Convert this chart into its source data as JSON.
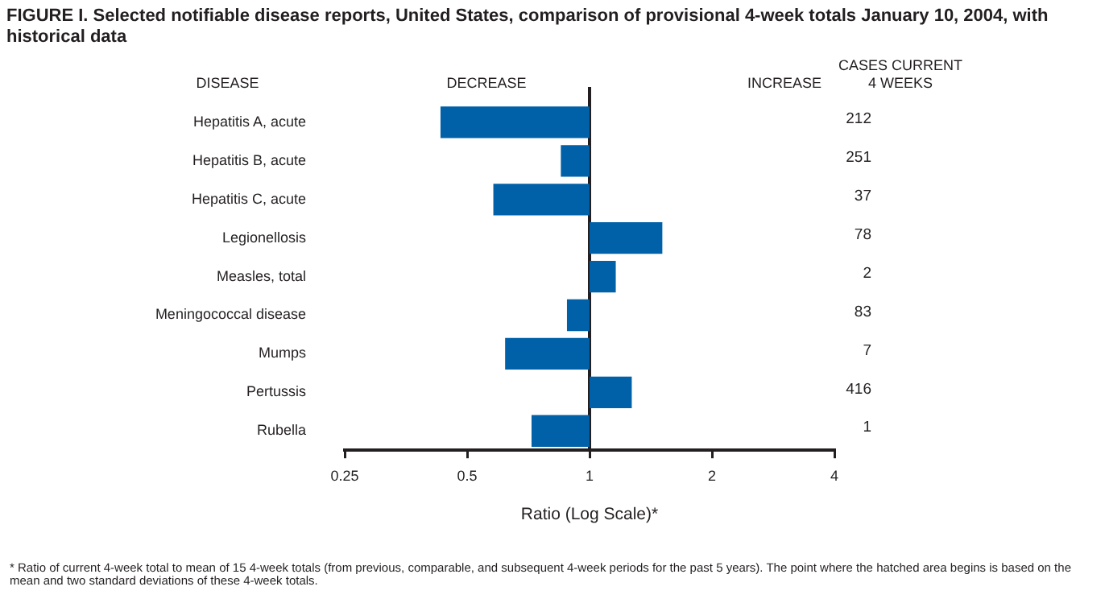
{
  "chart_data": {
    "type": "bar",
    "orientation": "horizontal",
    "log": "x",
    "title": "FIGURE I. Selected notifiable disease reports, United States, comparison of provisional 4-week totals January 10, 2004, with historical data",
    "xlabel": "Ratio (Log Scale)*",
    "categories": [
      "Hepatitis A, acute",
      "Hepatitis B, acute",
      "Hepatitis C, acute",
      "Legionellosis",
      "Measles, total",
      "Meningococcal disease",
      "Mumps",
      "Pertussis",
      "Rubella"
    ],
    "values": [
      -0.57,
      -0.15,
      -0.42,
      0.51,
      0.16,
      -0.12,
      -0.38,
      0.27,
      -0.28
    ],
    "base": [
      1,
      1,
      1,
      1,
      1,
      1,
      1,
      1,
      1
    ],
    "color": "#0060a8",
    "xlim": [
      0.25,
      4
    ],
    "xticks": [
      0.25,
      0.5,
      1,
      2,
      4
    ],
    "ref_lines": [
      {
        "axis": "x",
        "value": 1,
        "color": "#231f20"
      }
    ],
    "grid": false,
    "legend": false,
    "annotations": [
      "DISEASE",
      "DECREASE",
      "INCREASE",
      "CASES CURRENT\n4 WEEKS",
      "212",
      "251",
      "37",
      "78",
      "2",
      "83",
      "7",
      "416",
      "1",
      "* Ratio of current 4-week total to mean of 15 4-week totals (from previous, comparable, and subsequent 4-week periods for the past 5 years). The point where the hatched area begins is based on the mean and two standard deviations of these 4-week totals."
    ]
  }
}
